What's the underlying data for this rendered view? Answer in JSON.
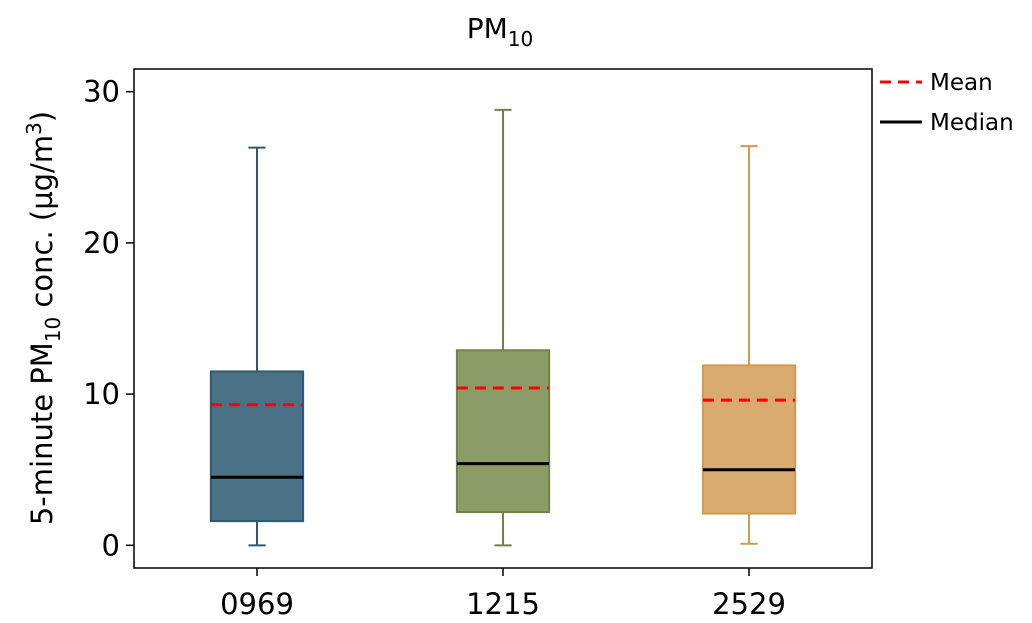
{
  "chart_data": {
    "type": "box",
    "title": {
      "main": "PM",
      "sub": "10"
    },
    "ylabel": {
      "pre": "5-minute PM",
      "sub": "10",
      "mid": " conc. (µg/m",
      "sup": "3",
      "post": ")"
    },
    "xlabel": "",
    "ylim": [
      -1.5,
      31.5
    ],
    "yticks": [
      0,
      10,
      20,
      30
    ],
    "categories": [
      "0969",
      "1215",
      "2529"
    ],
    "boxes": [
      {
        "category": "0969",
        "whisker_low": 0,
        "q1": 1.6,
        "median": 4.5,
        "mean": 9.3,
        "q3": 11.5,
        "whisker_high": 26.3,
        "fill": "#4a7185",
        "edge": "#2e5a73"
      },
      {
        "category": "1215",
        "whisker_low": 0,
        "q1": 2.2,
        "median": 5.4,
        "mean": 10.4,
        "q3": 12.9,
        "whisker_high": 28.8,
        "fill": "#8c9c66",
        "edge": "#6e8447"
      },
      {
        "category": "2529",
        "whisker_low": 0.1,
        "q1": 2.1,
        "median": 5.0,
        "mean": 9.6,
        "q3": 11.9,
        "whisker_high": 26.4,
        "fill": "#d9ab6f",
        "edge": "#d39a4b"
      }
    ],
    "legend": {
      "position": "outside-top-right",
      "items": [
        {
          "label": "Mean",
          "color": "#ff0000",
          "style": "dashed"
        },
        {
          "label": "Median",
          "color": "#000000",
          "style": "solid"
        }
      ]
    },
    "mean_color": "#ff0000",
    "median_color": "#000000",
    "grid": false
  }
}
